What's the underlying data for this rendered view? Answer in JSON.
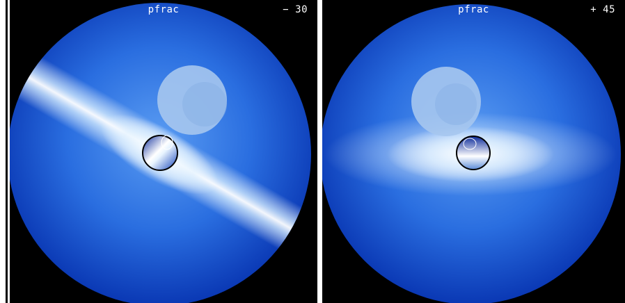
{
  "panels": [
    {
      "title": "pfrac",
      "angle": "− 30"
    },
    {
      "title": "pfrac",
      "angle": "+ 45"
    }
  ],
  "colors": {
    "background": "#000000",
    "disk_edge": "#0a3ab8",
    "disk_center": "#6aa4f0",
    "jet": "#e8f6ff",
    "companion": "#a8c8ee"
  }
}
